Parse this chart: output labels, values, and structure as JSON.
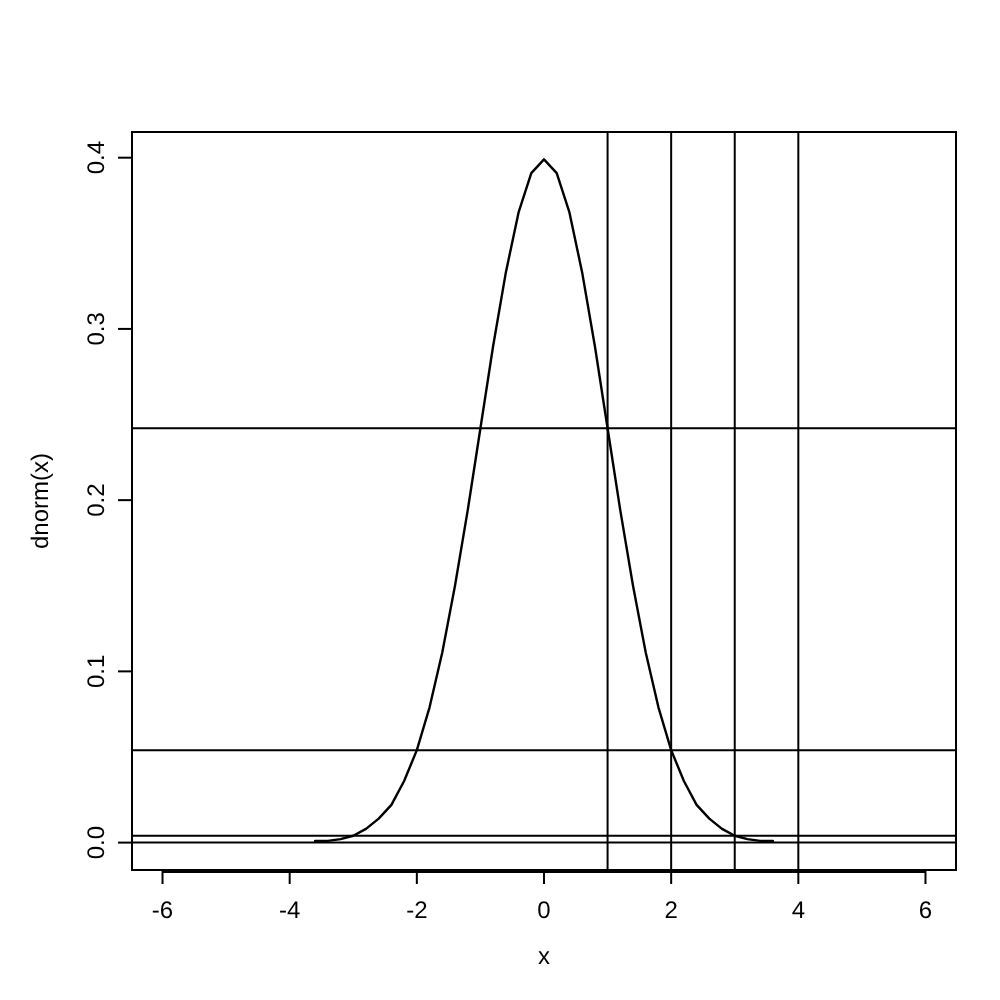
{
  "chart_data": {
    "type": "line",
    "xlabel": "x",
    "ylabel": "dnorm(x)",
    "x": [
      -3.6,
      -3.4,
      -3.2,
      -3.0,
      -2.8,
      -2.6,
      -2.4,
      -2.2,
      -2.0,
      -1.8,
      -1.6,
      -1.4,
      -1.2,
      -1.0,
      -0.8,
      -0.6,
      -0.4,
      -0.2,
      0,
      0.2,
      0.4,
      0.6,
      0.8,
      1.0,
      1.2,
      1.4,
      1.6,
      1.8,
      2.0,
      2.2,
      2.4,
      2.6,
      2.8,
      3.0,
      3.2,
      3.4,
      3.6
    ],
    "series": [
      {
        "color": "#000000",
        "values": [
          0.001,
          0.001,
          0.002,
          0.004,
          0.008,
          0.014,
          0.022,
          0.036,
          0.054,
          0.079,
          0.111,
          0.15,
          0.194,
          0.242,
          0.29,
          0.333,
          0.368,
          0.391,
          0.399,
          0.391,
          0.368,
          0.333,
          0.29,
          0.242,
          0.194,
          0.15,
          0.111,
          0.079,
          0.054,
          0.036,
          0.022,
          0.014,
          0.008,
          0.004,
          0.002,
          0.001,
          0.001
        ]
      }
    ],
    "xlim": [
      -6.48,
      6.48
    ],
    "xticks": [
      -6,
      -4,
      -2,
      0,
      2,
      4,
      6
    ],
    "ylim": [
      -0.016,
      0.415
    ],
    "yticks": [
      {
        "value": 0,
        "label": "0.0"
      },
      0.1,
      0.2,
      0.3,
      0.4
    ],
    "ref_lines": [
      {
        "axis": "x",
        "value": 1,
        "color": "#000000"
      },
      {
        "axis": "x",
        "value": 2,
        "color": "#000000"
      },
      {
        "axis": "x",
        "value": 3,
        "color": "#000000"
      },
      {
        "axis": "x",
        "value": 4,
        "color": "#000000"
      },
      {
        "axis": "y",
        "value": 0.242,
        "color": "#000000"
      },
      {
        "axis": "y",
        "value": 0.054,
        "color": "#000000"
      },
      {
        "axis": "y",
        "value": 0.004,
        "color": "#000000"
      },
      {
        "axis": "y",
        "value": 0,
        "color": "#000000"
      }
    ],
    "grid": false,
    "marker": "none",
    "line_style": "solid"
  }
}
